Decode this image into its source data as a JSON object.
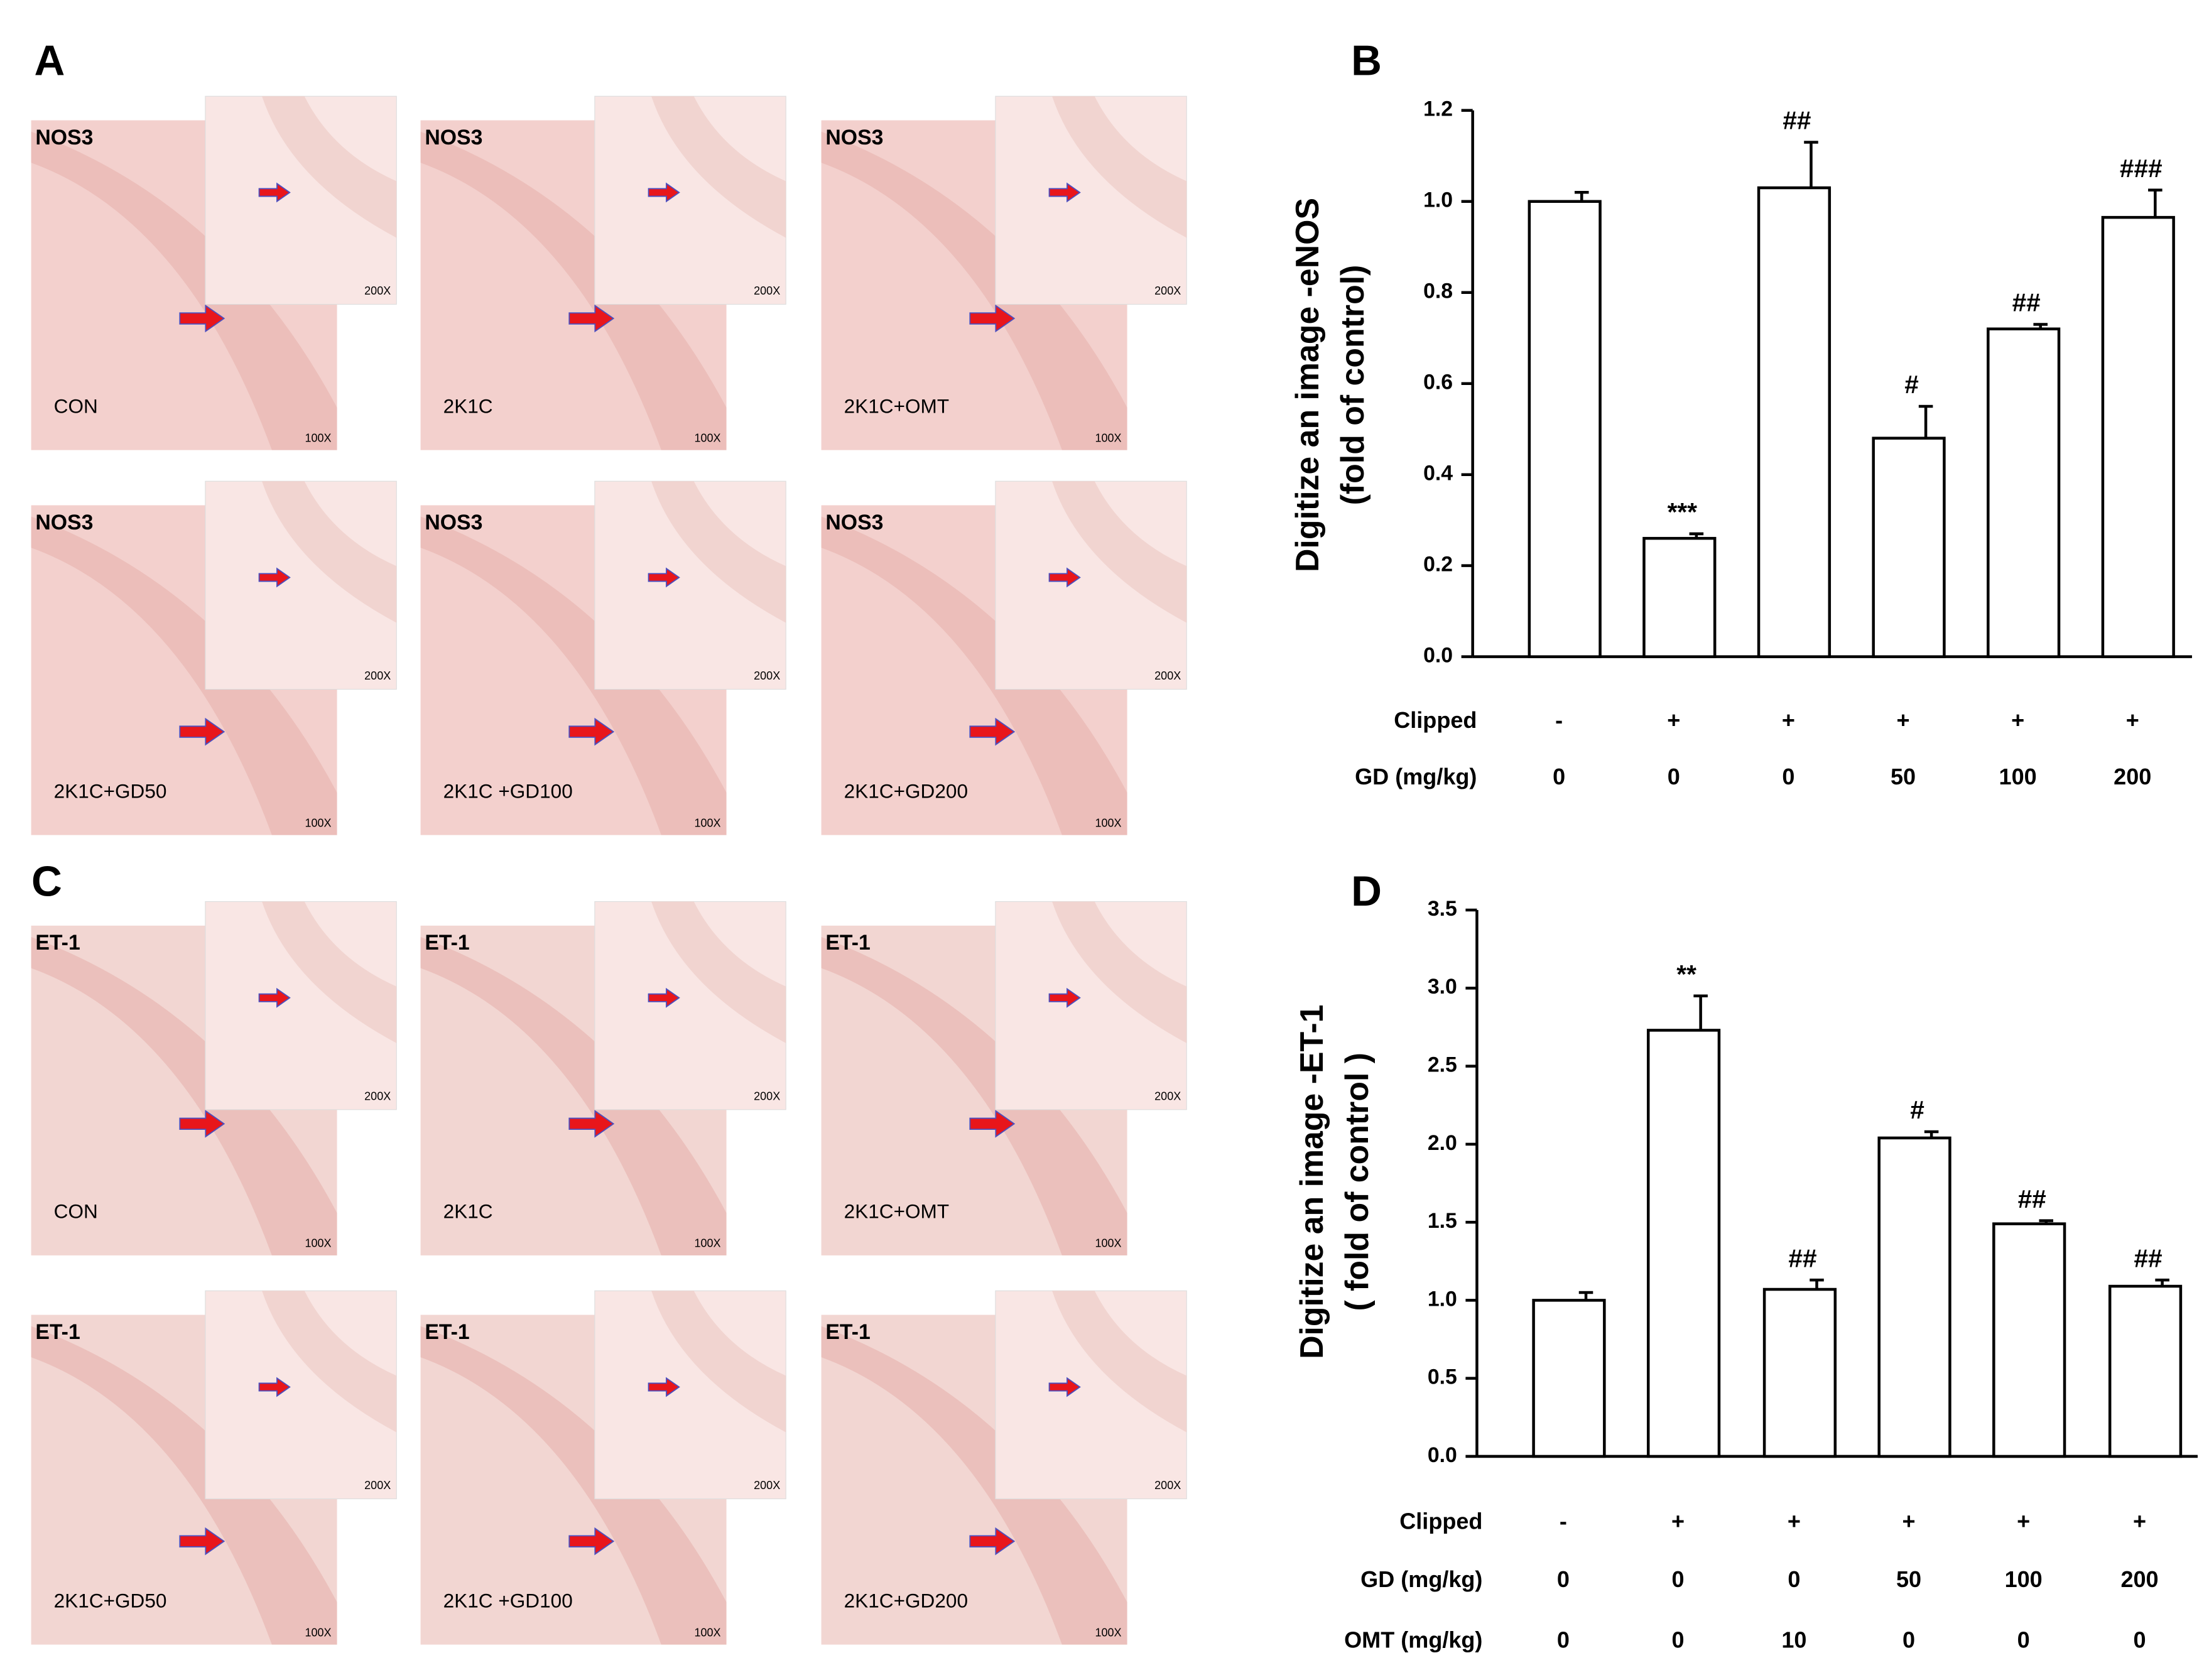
{
  "micrographs": [
    {
      "panel": "A",
      "stain": "NOS3",
      "main_magnification": "100X",
      "inset_magnification": "200X",
      "groups": [
        "CON",
        "2K1C",
        "2K1C+OMT",
        "2K1C+GD50",
        "2K1C +GD100",
        "2K1C+GD200"
      ]
    },
    {
      "panel": "C",
      "stain": "ET-1",
      "main_magnification": "100X",
      "inset_magnification": "200X",
      "groups": [
        "CON",
        "2K1C",
        "2K1C+OMT",
        "2K1C+GD50",
        "2K1C +GD100",
        "2K1C+GD200"
      ]
    }
  ],
  "chart_data": [
    {
      "type": "bar",
      "panel": "B",
      "ylabel": [
        "Digitize an image -eNOS",
        "(fold of control)"
      ],
      "values": [
        1.0,
        0.26,
        1.03,
        0.48,
        0.72,
        0.965
      ],
      "errors": [
        0.02,
        0.01,
        0.1,
        0.07,
        0.01,
        0.06
      ],
      "annotations": [
        null,
        "***",
        "##",
        "#",
        "##",
        "###"
      ],
      "color": "#ffffff",
      "ylim": [
        0,
        1.2
      ],
      "yticks": [
        {
          "value": 0,
          "label": "0.0"
        },
        0.2,
        0.4,
        0.6,
        0.8,
        {
          "value": 1,
          "label": "1.0"
        },
        1.2
      ],
      "rows": [
        {
          "label": "Clipped",
          "cells": [
            "-",
            "+",
            "+",
            "+",
            "+",
            "+"
          ]
        },
        {
          "label": "GD (mg/kg)",
          "cells": [
            "0",
            "0",
            "0",
            "50",
            "100",
            "200"
          ]
        }
      ]
    },
    {
      "type": "bar",
      "panel": "D",
      "ylabel": [
        "Digitize an image -ET-1",
        "( fold of control )"
      ],
      "values": [
        1.0,
        2.73,
        1.07,
        2.04,
        1.49,
        1.09
      ],
      "errors": [
        0.05,
        0.22,
        0.06,
        0.04,
        0.02,
        0.04
      ],
      "annotations": [
        null,
        "**",
        "##",
        "#",
        "##",
        "##"
      ],
      "color": "#ffffff",
      "ylim": [
        0,
        3.5
      ],
      "yticks": [
        {
          "value": 0,
          "label": "0.0"
        },
        0.5,
        {
          "value": 1,
          "label": "1.0"
        },
        1.5,
        {
          "value": 2,
          "label": "2.0"
        },
        2.5,
        {
          "value": 3,
          "label": "3.0"
        },
        3.5
      ],
      "rows": [
        {
          "label": "Clipped",
          "cells": [
            "-",
            "+",
            "+",
            "+",
            "+",
            "+"
          ]
        },
        {
          "label": "GD (mg/kg)",
          "cells": [
            "0",
            "0",
            "0",
            "50",
            "100",
            "200"
          ]
        },
        {
          "label": "OMT (mg/kg)",
          "cells": [
            "0",
            "0",
            "10",
            "0",
            "0",
            "0"
          ]
        }
      ]
    }
  ]
}
